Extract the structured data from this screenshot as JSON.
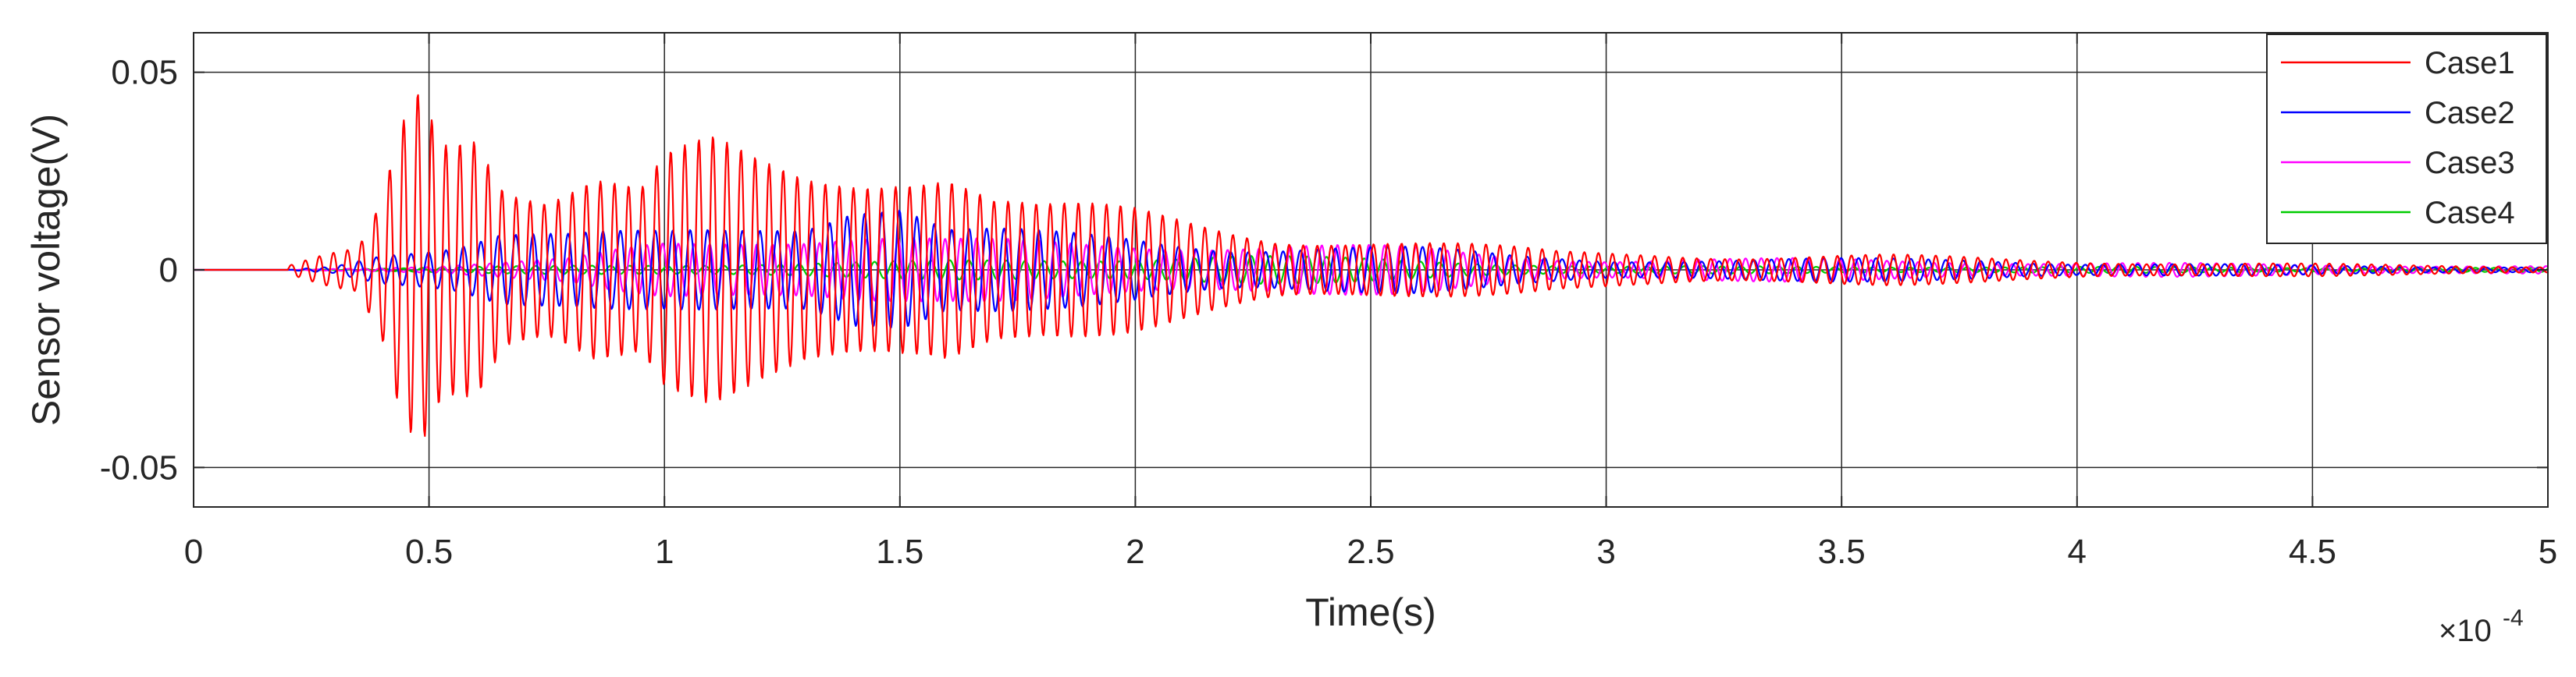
{
  "chart_data": {
    "type": "line",
    "title": "",
    "xlabel": "Time(s)",
    "ylabel": "Sensor voltage(V)",
    "x_multiplier": "×10",
    "x_exponent": "-4",
    "xlim": [
      0,
      5
    ],
    "ylim": [
      -0.06,
      0.06
    ],
    "xticks": [
      0,
      0.5,
      1,
      1.5,
      2,
      2.5,
      3,
      3.5,
      4,
      4.5,
      5
    ],
    "xtick_labels": [
      "0",
      "0.5",
      "1",
      "1.5",
      "2",
      "2.5",
      "3",
      "3.5",
      "4",
      "4.5",
      "5"
    ],
    "yticks": [
      -0.05,
      0,
      0.05
    ],
    "ytick_labels": [
      "-0.05",
      "0",
      "0.05"
    ],
    "grid": true,
    "legend_position": "top-right",
    "signal_start": 0.2,
    "series": [
      {
        "name": "Case1",
        "color": "#ff0000",
        "freq_per_unit": 33.5,
        "phase": 0.0,
        "envelope": [
          [
            0.2,
            0.001
          ],
          [
            0.28,
            0.004
          ],
          [
            0.35,
            0.006
          ],
          [
            0.4,
            0.02
          ],
          [
            0.44,
            0.045
          ],
          [
            0.48,
            0.06
          ],
          [
            0.53,
            0.045
          ],
          [
            0.6,
            0.05
          ],
          [
            0.66,
            0.03
          ],
          [
            0.75,
            0.024
          ],
          [
            0.85,
            0.028
          ],
          [
            0.95,
            0.022
          ],
          [
            1.0,
            0.03
          ],
          [
            1.1,
            0.034
          ],
          [
            1.2,
            0.03
          ],
          [
            1.3,
            0.028
          ],
          [
            1.4,
            0.03
          ],
          [
            1.5,
            0.033
          ],
          [
            1.6,
            0.033
          ],
          [
            1.7,
            0.022
          ],
          [
            1.8,
            0.018
          ],
          [
            1.9,
            0.017
          ],
          [
            2.0,
            0.016
          ],
          [
            2.1,
            0.014
          ],
          [
            2.2,
            0.012
          ],
          [
            2.3,
            0.01
          ],
          [
            2.5,
            0.009
          ],
          [
            2.7,
            0.007
          ],
          [
            2.9,
            0.005
          ],
          [
            3.1,
            0.005
          ],
          [
            3.3,
            0.004
          ],
          [
            3.6,
            0.004
          ],
          [
            3.9,
            0.003
          ],
          [
            4.2,
            0.002
          ],
          [
            4.6,
            0.0015
          ],
          [
            5.0,
            0.001
          ]
        ]
      },
      {
        "name": "Case2",
        "color": "#0000ff",
        "freq_per_unit": 27,
        "phase": 1.1,
        "envelope": [
          [
            0.2,
            0.0
          ],
          [
            0.3,
            0.001
          ],
          [
            0.4,
            0.005
          ],
          [
            0.55,
            0.008
          ],
          [
            0.65,
            0.012
          ],
          [
            0.8,
            0.01
          ],
          [
            1.0,
            0.01
          ],
          [
            1.15,
            0.012
          ],
          [
            1.3,
            0.015
          ],
          [
            1.4,
            0.022
          ],
          [
            1.5,
            0.021
          ],
          [
            1.6,
            0.012
          ],
          [
            1.8,
            0.01
          ],
          [
            2.0,
            0.009
          ],
          [
            2.2,
            0.007
          ],
          [
            2.4,
            0.007
          ],
          [
            2.6,
            0.006
          ],
          [
            2.8,
            0.004
          ],
          [
            3.0,
            0.003
          ],
          [
            3.4,
            0.003
          ],
          [
            3.8,
            0.003
          ],
          [
            4.0,
            0.002
          ],
          [
            4.5,
            0.0012
          ],
          [
            5.0,
            0.0008
          ]
        ]
      },
      {
        "name": "Case3",
        "color": "#ff00ff",
        "freq_per_unit": 30,
        "phase": 2.3,
        "envelope": [
          [
            0.2,
            0.0
          ],
          [
            0.5,
            0.001
          ],
          [
            0.8,
            0.003
          ],
          [
            1.0,
            0.008
          ],
          [
            1.2,
            0.01
          ],
          [
            1.4,
            0.01
          ],
          [
            1.6,
            0.008
          ],
          [
            1.8,
            0.008
          ],
          [
            2.0,
            0.008
          ],
          [
            2.3,
            0.007
          ],
          [
            2.6,
            0.006
          ],
          [
            2.8,
            0.004
          ],
          [
            3.0,
            0.003
          ],
          [
            3.5,
            0.003
          ],
          [
            4.0,
            0.002
          ],
          [
            4.5,
            0.0015
          ],
          [
            5.0,
            0.001
          ]
        ]
      },
      {
        "name": "Case4",
        "color": "#00cc00",
        "freq_per_unit": 25,
        "phase": 0.6,
        "envelope": [
          [
            0.2,
            0.0
          ],
          [
            0.6,
            0.0008
          ],
          [
            1.0,
            0.0015
          ],
          [
            1.4,
            0.002
          ],
          [
            1.8,
            0.003
          ],
          [
            2.2,
            0.004
          ],
          [
            2.5,
            0.003
          ],
          [
            3.0,
            0.001
          ],
          [
            4.0,
            0.0008
          ],
          [
            5.0,
            0.0005
          ]
        ]
      }
    ]
  }
}
